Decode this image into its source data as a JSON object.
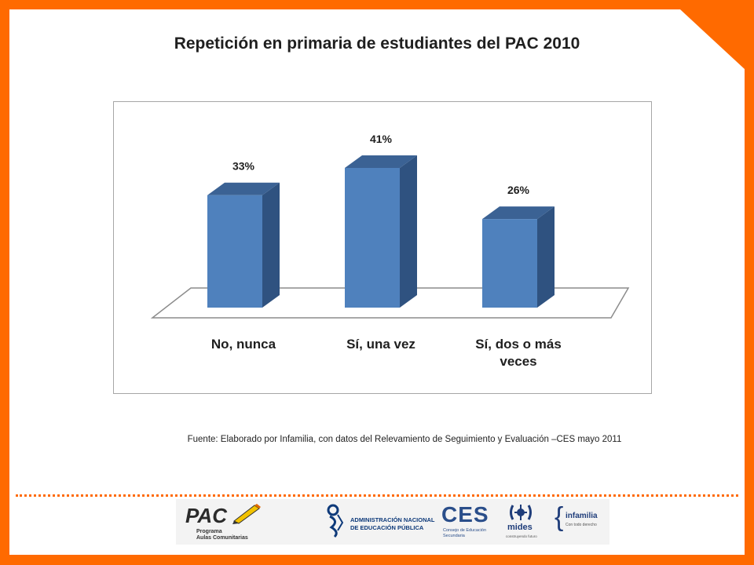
{
  "title": "Repetición en primaria de estudiantes  del PAC 2010",
  "source_note": "Fuente: Elaborado por Infamilia, con datos del Relevamiento de Seguimiento y Evaluación –CES mayo 2011",
  "colors": {
    "frame": "#ff6a00",
    "bar_front": "#4f81bd",
    "bar_side": "#2f5280",
    "bar_top": "#3b6294"
  },
  "chart_data": {
    "type": "bar",
    "categories": [
      "No, nunca",
      "Sí, una vez",
      "Sí, dos o más veces"
    ],
    "category_lines": [
      [
        "No, nunca"
      ],
      [
        "Sí, una vez"
      ],
      [
        "Sí, dos o más",
        "veces"
      ]
    ],
    "values": [
      33,
      41,
      26
    ],
    "value_labels": [
      "33%",
      "41%",
      "26%"
    ],
    "three_d": true,
    "grid": false,
    "legend": "none"
  },
  "logos": {
    "pac": "PAC",
    "pac_sub1": "Programa",
    "pac_sub2": "Aulas Comunitarias",
    "anep1": "ADMINISTRACIÓN NACIONAL",
    "anep2": "DE EDUCACIÓN PÚBLICA",
    "ces": "CES",
    "ces_sub1": "Consejo de Educación",
    "ces_sub2": "Secundaria",
    "mides": "mides",
    "mides_sub": "construyendo futuro",
    "infamilia": "infamilia",
    "infamilia_sub": "Con todo derecho"
  }
}
